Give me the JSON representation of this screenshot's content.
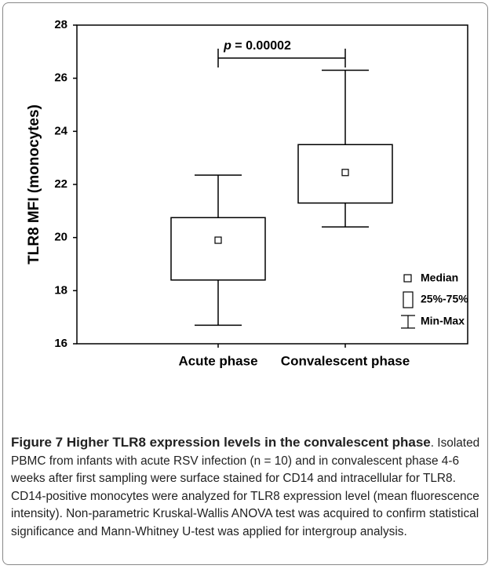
{
  "chart_data": {
    "type": "box",
    "y_label": "TLR8 MFI (monocytes)",
    "categories": [
      "Acute phase",
      "Convalescent phase"
    ],
    "series": [
      {
        "min": [
          16.7,
          20.4
        ],
        "q1": [
          18.4,
          21.3
        ],
        "median": [
          19.9,
          22.45
        ],
        "q3": [
          20.75,
          23.5
        ],
        "max": [
          22.35,
          26.3
        ]
      }
    ],
    "ylim": [
      16,
      28
    ],
    "yticks": [
      16,
      18,
      20,
      22,
      24,
      26,
      28
    ],
    "annotation_symbol": "p",
    "annotation": "= 0.00002",
    "legend": [
      "Median",
      "25%-75%",
      "Min-Max"
    ]
  },
  "caption": {
    "title": "Figure 7 Higher TLR8 expression levels in the convalescent phase",
    "text": ". Isolated PBMC from infants with acute RSV infection (n = 10) and in convalescent phase 4-6 weeks after first sampling were surface stained for CD14 and intracellular for TLR8. CD14-positive monocytes were analyzed for TLR8 expression level (mean fluorescence intensity). Non-parametric Kruskal-Wallis ANOVA test was acquired to confirm statistical significance and Mann-Whitney U-test was applied for intergroup analysis."
  }
}
